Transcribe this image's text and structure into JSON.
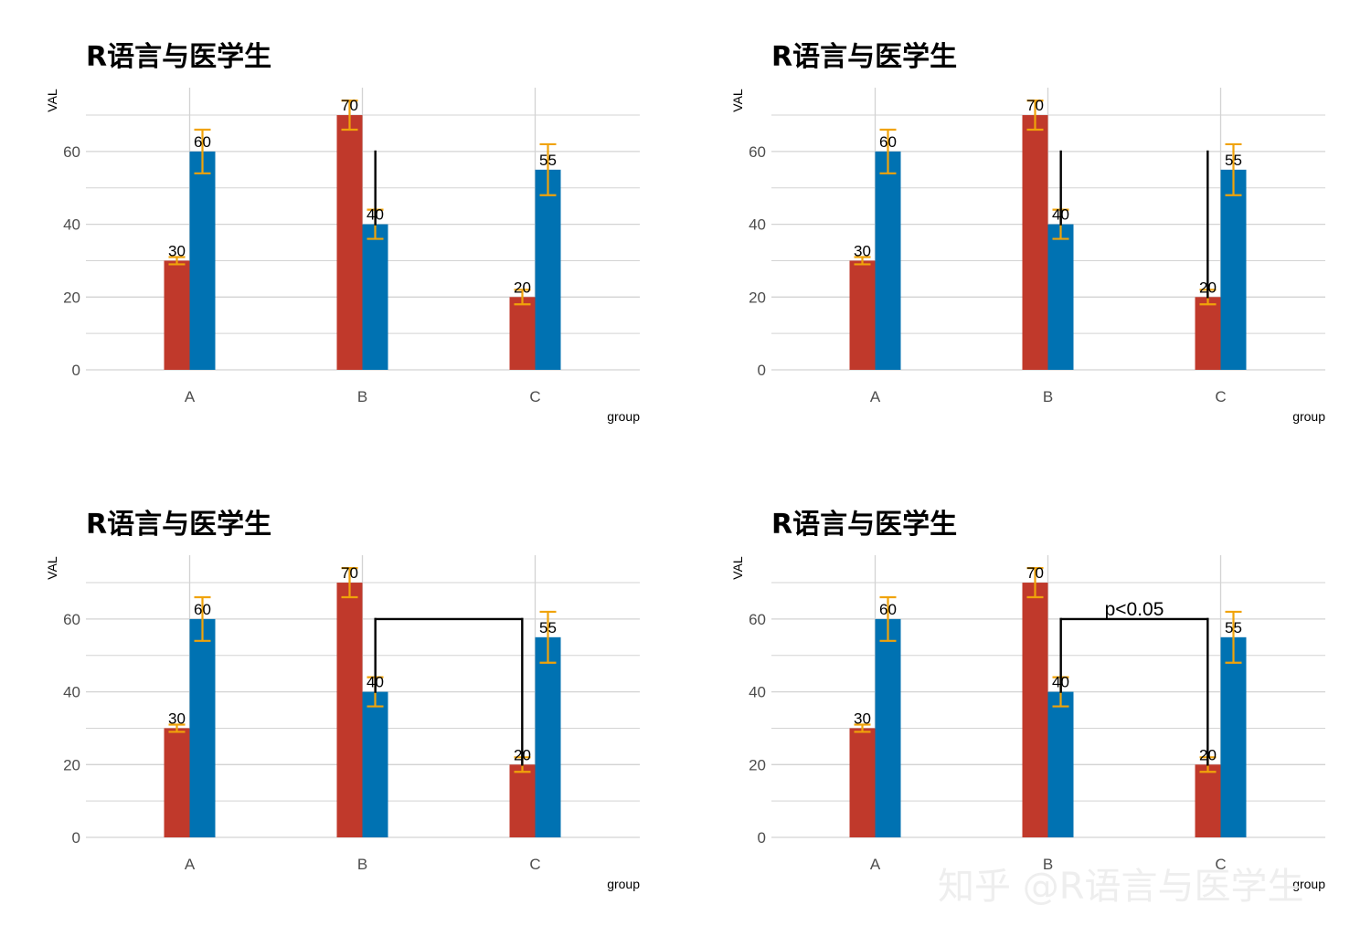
{
  "colors": {
    "series_1": "#C0392B",
    "series_2": "#0072B2",
    "error_bar": "#F0A30A",
    "grid": "#D3D3D3",
    "annotation": "#000000"
  },
  "watermark": "知乎 @R语言与医学生",
  "chart_data": [
    {
      "type": "bar",
      "title": "R语言与医学生",
      "xlabel": "group",
      "ylabel": "VAL",
      "categories": [
        "A",
        "B",
        "C"
      ],
      "ylim": [
        0,
        75
      ],
      "yticks": [
        "0",
        "20",
        "40",
        "60"
      ],
      "grid": true,
      "series": [
        {
          "values": [
            30,
            70,
            20
          ],
          "error": [
            1,
            4,
            2
          ],
          "labels": [
            "30",
            "70",
            "20"
          ]
        },
        {
          "values": [
            60,
            40,
            55
          ],
          "error": [
            6,
            4,
            7
          ],
          "labels": [
            "60",
            "40",
            "55"
          ]
        }
      ],
      "annotation": {
        "type": "segment",
        "segments": [
          [
            [
              1.075,
              40
            ],
            [
              1.075,
              60
            ]
          ]
        ],
        "text": ""
      }
    },
    {
      "type": "bar",
      "title": "R语言与医学生",
      "xlabel": "group",
      "ylabel": "VAL",
      "categories": [
        "A",
        "B",
        "C"
      ],
      "ylim": [
        0,
        75
      ],
      "yticks": [
        "0",
        "20",
        "40",
        "60"
      ],
      "grid": true,
      "series": [
        {
          "values": [
            30,
            70,
            20
          ],
          "error": [
            1,
            4,
            2
          ],
          "labels": [
            "30",
            "70",
            "20"
          ]
        },
        {
          "values": [
            60,
            40,
            55
          ],
          "error": [
            6,
            4,
            7
          ],
          "labels": [
            "60",
            "40",
            "55"
          ]
        }
      ],
      "annotation": {
        "type": "segment",
        "segments": [
          [
            [
              1.075,
              40
            ],
            [
              1.075,
              60
            ]
          ],
          [
            [
              1.925,
              20
            ],
            [
              1.925,
              60
            ]
          ]
        ],
        "text": ""
      }
    },
    {
      "type": "bar",
      "title": "R语言与医学生",
      "xlabel": "group",
      "ylabel": "VAL",
      "categories": [
        "A",
        "B",
        "C"
      ],
      "ylim": [
        0,
        75
      ],
      "yticks": [
        "0",
        "20",
        "40",
        "60"
      ],
      "grid": true,
      "series": [
        {
          "values": [
            30,
            70,
            20
          ],
          "error": [
            1,
            4,
            2
          ],
          "labels": [
            "30",
            "70",
            "20"
          ]
        },
        {
          "values": [
            60,
            40,
            55
          ],
          "error": [
            6,
            4,
            7
          ],
          "labels": [
            "60",
            "40",
            "55"
          ]
        }
      ],
      "annotation": {
        "type": "segment",
        "segments": [
          [
            [
              1.075,
              40
            ],
            [
              1.075,
              60
            ]
          ],
          [
            [
              1.075,
              60
            ],
            [
              1.925,
              60
            ]
          ],
          [
            [
              1.925,
              60
            ],
            [
              1.925,
              20
            ]
          ]
        ],
        "text": ""
      }
    },
    {
      "type": "bar",
      "title": "R语言与医学生",
      "xlabel": "group",
      "ylabel": "VAL",
      "categories": [
        "A",
        "B",
        "C"
      ],
      "ylim": [
        0,
        75
      ],
      "yticks": [
        "0",
        "20",
        "40",
        "60"
      ],
      "grid": true,
      "series": [
        {
          "values": [
            30,
            70,
            20
          ],
          "error": [
            1,
            4,
            2
          ],
          "labels": [
            "30",
            "70",
            "20"
          ]
        },
        {
          "values": [
            60,
            40,
            55
          ],
          "error": [
            6,
            4,
            7
          ],
          "labels": [
            "60",
            "40",
            "55"
          ]
        }
      ],
      "annotation": {
        "type": "segment",
        "segments": [
          [
            [
              1.075,
              40
            ],
            [
              1.075,
              60
            ]
          ],
          [
            [
              1.075,
              60
            ],
            [
              1.925,
              60
            ]
          ],
          [
            [
              1.925,
              60
            ],
            [
              1.925,
              20
            ]
          ]
        ],
        "text": "p<0.05",
        "text_at": [
          1.5,
          61
        ]
      }
    }
  ]
}
